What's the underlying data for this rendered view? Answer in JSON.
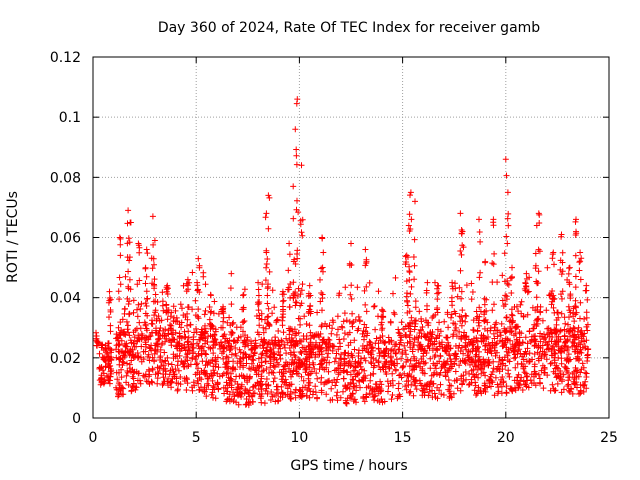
{
  "chart_data": {
    "type": "scatter",
    "title": "Day 360 of 2024, Rate Of TEC Index for receiver gamb",
    "xlabel": "GPS time / hours",
    "ylabel": "ROTI / TECUs",
    "xlim": [
      0,
      25
    ],
    "ylim": [
      0,
      0.12
    ],
    "xticks": [
      0,
      5,
      10,
      15,
      20,
      25
    ],
    "yticks": [
      0,
      0.02,
      0.04,
      0.06,
      0.08,
      0.1,
      0.12
    ],
    "xtick_labels": [
      "0",
      "5",
      "10",
      "15",
      "20",
      "25"
    ],
    "ytick_labels": [
      "0",
      "0.02",
      "0.04",
      "0.06",
      "0.08",
      "0.1",
      "0.12"
    ],
    "grid": true,
    "marker": "+",
    "marker_color": "#ff0000",
    "series": [
      {
        "name": "ROTI",
        "base_profile": {
          "x": [
            0.3,
            0.8,
            1.2,
            2.0,
            3.0,
            4.0,
            5.0,
            6.0,
            7.0,
            8.0,
            9.0,
            10.0,
            11.0,
            12.0,
            13.0,
            14.0,
            15.0,
            16.0,
            17.0,
            18.0,
            19.0,
            20.0,
            21.0,
            22.0,
            23.0,
            24.0
          ],
          "y": [
            0.016,
            0.016,
            0.018,
            0.02,
            0.022,
            0.02,
            0.019,
            0.017,
            0.015,
            0.015,
            0.016,
            0.018,
            0.017,
            0.015,
            0.016,
            0.016,
            0.018,
            0.018,
            0.017,
            0.018,
            0.018,
            0.019,
            0.02,
            0.02,
            0.019,
            0.018
          ]
        },
        "peaks": [
          {
            "x": 0.2,
            "y": 0.024
          },
          {
            "x": 0.8,
            "y": 0.042
          },
          {
            "x": 1.3,
            "y": 0.06
          },
          {
            "x": 1.7,
            "y": 0.069
          },
          {
            "x": 1.8,
            "y": 0.065
          },
          {
            "x": 2.2,
            "y": 0.058
          },
          {
            "x": 2.6,
            "y": 0.056
          },
          {
            "x": 2.9,
            "y": 0.067
          },
          {
            "x": 3.0,
            "y": 0.059
          },
          {
            "x": 3.6,
            "y": 0.044
          },
          {
            "x": 4.6,
            "y": 0.046
          },
          {
            "x": 5.1,
            "y": 0.053
          },
          {
            "x": 5.7,
            "y": 0.041
          },
          {
            "x": 6.3,
            "y": 0.037
          },
          {
            "x": 6.7,
            "y": 0.048
          },
          {
            "x": 7.3,
            "y": 0.041
          },
          {
            "x": 8.0,
            "y": 0.045
          },
          {
            "x": 8.4,
            "y": 0.068
          },
          {
            "x": 8.5,
            "y": 0.074
          },
          {
            "x": 9.2,
            "y": 0.042
          },
          {
            "x": 9.5,
            "y": 0.058
          },
          {
            "x": 9.7,
            "y": 0.077
          },
          {
            "x": 9.8,
            "y": 0.096
          },
          {
            "x": 9.9,
            "y": 0.106
          },
          {
            "x": 10.1,
            "y": 0.084
          },
          {
            "x": 10.5,
            "y": 0.044
          },
          {
            "x": 11.1,
            "y": 0.06
          },
          {
            "x": 12.5,
            "y": 0.058
          },
          {
            "x": 13.2,
            "y": 0.056
          },
          {
            "x": 14.0,
            "y": 0.036
          },
          {
            "x": 15.2,
            "y": 0.054
          },
          {
            "x": 15.3,
            "y": 0.064
          },
          {
            "x": 15.4,
            "y": 0.075
          },
          {
            "x": 15.6,
            "y": 0.072
          },
          {
            "x": 16.2,
            "y": 0.045
          },
          {
            "x": 16.7,
            "y": 0.044
          },
          {
            "x": 17.4,
            "y": 0.045
          },
          {
            "x": 17.8,
            "y": 0.068
          },
          {
            "x": 17.9,
            "y": 0.062
          },
          {
            "x": 18.7,
            "y": 0.066
          },
          {
            "x": 19.0,
            "y": 0.052
          },
          {
            "x": 19.4,
            "y": 0.066
          },
          {
            "x": 20.0,
            "y": 0.086
          },
          {
            "x": 20.1,
            "y": 0.075
          },
          {
            "x": 20.3,
            "y": 0.05
          },
          {
            "x": 21.0,
            "y": 0.048
          },
          {
            "x": 21.5,
            "y": 0.064
          },
          {
            "x": 21.6,
            "y": 0.068
          },
          {
            "x": 22.3,
            "y": 0.055
          },
          {
            "x": 22.7,
            "y": 0.061
          },
          {
            "x": 23.1,
            "y": 0.05
          },
          {
            "x": 23.4,
            "y": 0.066
          },
          {
            "x": 23.6,
            "y": 0.055
          },
          {
            "x": 23.9,
            "y": 0.044
          }
        ]
      }
    ]
  }
}
